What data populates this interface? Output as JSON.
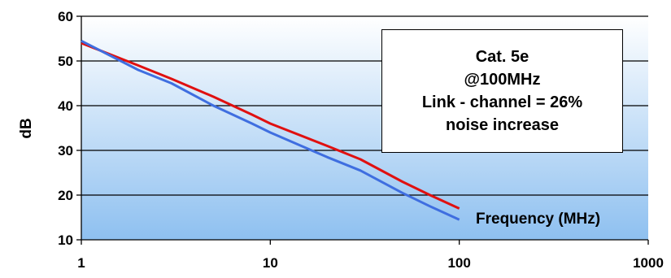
{
  "chart_data": {
    "type": "line",
    "xscale": "log",
    "xlim": [
      1,
      1000
    ],
    "ylim": [
      10,
      60
    ],
    "x_ticks": [
      "1",
      "10",
      "100",
      "1000"
    ],
    "y_ticks": [
      "10",
      "20",
      "30",
      "40",
      "50",
      "60"
    ],
    "ylabel": "dB",
    "xlabel": "Frequency (MHz)",
    "grid": "horizontal",
    "colors": {
      "red_series": "#e01010",
      "blue_series": "#3f6ee0"
    },
    "series": [
      {
        "color": "#e01010",
        "x": [
          1,
          2,
          3,
          5,
          8,
          10,
          20,
          30,
          50,
          70,
          100
        ],
        "values": [
          54,
          49,
          46,
          42,
          38,
          36,
          31,
          28,
          23,
          20,
          17
        ]
      },
      {
        "color": "#3f6ee0",
        "x": [
          1,
          2,
          3,
          5,
          8,
          10,
          20,
          30,
          50,
          70,
          100
        ],
        "values": [
          54.5,
          48,
          45,
          40,
          36,
          34,
          28.5,
          25.5,
          20.5,
          17.5,
          14.5
        ]
      }
    ],
    "annotation": [
      "Cat. 5e",
      "@100MHz",
      "Link - channel = 26%",
      "noise increase"
    ]
  }
}
